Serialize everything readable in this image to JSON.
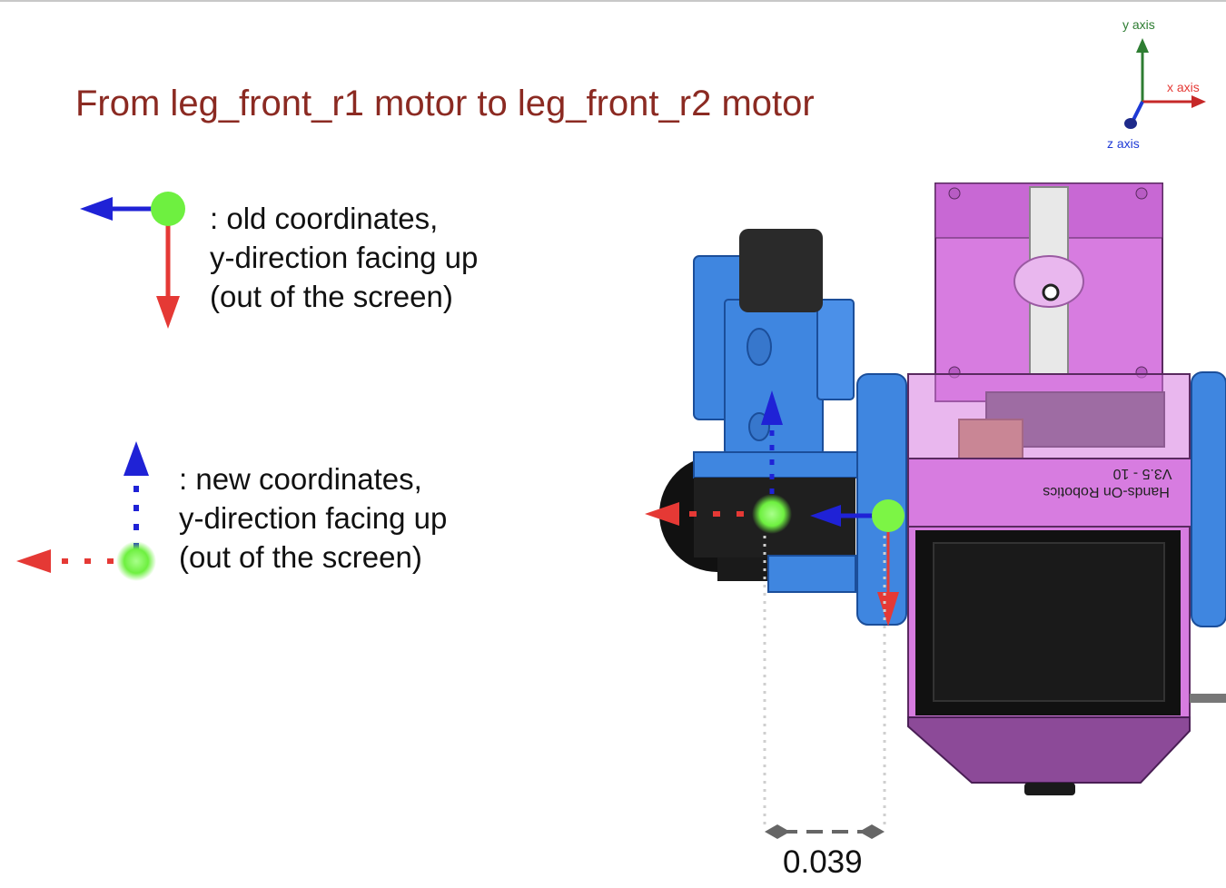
{
  "title": "From leg_front_r1 motor to leg_front_r2 motor",
  "axis_widget": {
    "y_label": "y axis",
    "x_label": "x axis",
    "z_label": "z axis",
    "y_color": "#2e7d32",
    "x_color": "#e53935",
    "z_color": "#1e3ad6"
  },
  "legend_old": {
    "line1": ": old coordinates,",
    "line2": "y-direction facing up",
    "line3": "(out of the screen)",
    "icon": "solid-arrow-frame-icon"
  },
  "legend_new": {
    "line1": ": new coordinates,",
    "line2": "y-direction facing up",
    "line3": "(out of the screen)",
    "icon": "dotted-arrow-frame-icon"
  },
  "model_label": {
    "line1": "Hands-On Robotics",
    "line2": "V3.5 - 10"
  },
  "dimension": {
    "value": "0.039"
  },
  "colors": {
    "title": "#8b2a22",
    "red_arrow": "#e53935",
    "blue_arrow": "#1f22d6",
    "green_origin": "#7cf545",
    "motor_blue": "#3f86e0",
    "body_pink": "#d77ce0"
  }
}
